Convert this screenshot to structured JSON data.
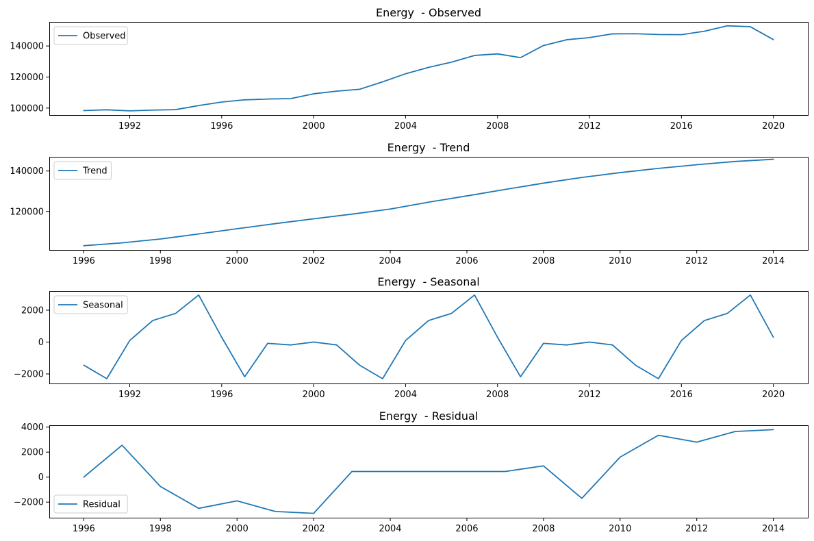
{
  "chart_data": [
    {
      "type": "line",
      "title": "Energy  - Observed",
      "xlabel": "",
      "ylabel": "",
      "xlim": [
        1988.5,
        2021.5
      ],
      "ylim": [
        95500,
        155500
      ],
      "xticks": [
        1992,
        1996,
        2000,
        2004,
        2008,
        2012,
        2016,
        2020
      ],
      "xtick_labels": [
        "1992",
        "1996",
        "2000",
        "2004",
        "2008",
        "2012",
        "2016",
        "2020"
      ],
      "yticks": [
        100000,
        120000,
        140000
      ],
      "ytick_labels": [
        "100000",
        "120000",
        "140000"
      ],
      "grid": false,
      "legend": "upper-left",
      "series": [
        {
          "name": "Observed",
          "color": "#1f77b4",
          "x": [
            1990,
            1991,
            1992,
            1993,
            1994,
            1995,
            1996,
            1997,
            1998,
            1999,
            2000,
            2001,
            2002,
            2003,
            2004,
            2005,
            2006,
            2007,
            2008,
            2009,
            2010,
            2011,
            2012,
            2013,
            2014,
            2015,
            2016,
            2017,
            2018,
            2019,
            2020
          ],
          "y": [
            98400,
            98900,
            98200,
            98700,
            99000,
            101600,
            103900,
            105300,
            105800,
            106100,
            109200,
            110900,
            112100,
            116900,
            122100,
            126200,
            129600,
            133900,
            134900,
            132500,
            140300,
            144000,
            145400,
            147800,
            147900,
            147400,
            147300,
            149500,
            153000,
            152400,
            144100
          ]
        }
      ]
    },
    {
      "type": "line",
      "title": "Energy  - Trend",
      "xlabel": "",
      "ylabel": "",
      "xlim": [
        1995.1,
        2014.9
      ],
      "ylim": [
        101000,
        147000
      ],
      "xticks": [
        1996,
        1998,
        2000,
        2002,
        2004,
        2006,
        2008,
        2010,
        2012,
        2014
      ],
      "xtick_labels": [
        "1996",
        "1998",
        "2000",
        "2002",
        "2004",
        "2006",
        "2008",
        "2010",
        "2012",
        "2014"
      ],
      "yticks": [
        120000,
        140000
      ],
      "ytick_labels": [
        "120000",
        "140000"
      ],
      "grid": false,
      "legend": "upper-left",
      "series": [
        {
          "name": "Trend",
          "color": "#1f77b4",
          "x": [
            1996,
            1997,
            1998,
            1999,
            2000,
            2001,
            2002,
            2003,
            2004,
            2005,
            2006,
            2007,
            2008,
            2009,
            2010,
            2011,
            2012,
            2013,
            2014
          ],
          "y": [
            103100,
            104500,
            106400,
            108900,
            111500,
            114000,
            116400,
            118700,
            121200,
            124600,
            127700,
            130900,
            134000,
            136800,
            139200,
            141300,
            143100,
            144700,
            145800
          ]
        }
      ]
    },
    {
      "type": "line",
      "title": "Energy  - Seasonal",
      "xlabel": "",
      "ylabel": "",
      "xlim": [
        1988.5,
        2021.5
      ],
      "ylim": [
        -2600,
        3200
      ],
      "xticks": [
        1992,
        1996,
        2000,
        2004,
        2008,
        2012,
        2016,
        2020
      ],
      "xtick_labels": [
        "1992",
        "1996",
        "2000",
        "2004",
        "2008",
        "2012",
        "2016",
        "2020"
      ],
      "yticks": [
        -2000,
        0,
        2000
      ],
      "ytick_labels": [
        "−2000",
        "0",
        "2000"
      ],
      "grid": false,
      "legend": "upper-left",
      "series": [
        {
          "name": "Seasonal",
          "color": "#1f77b4",
          "x": [
            1990,
            1991,
            1992,
            1993,
            1994,
            1995,
            1996,
            1997,
            1998,
            1999,
            2000,
            2001,
            2002,
            2003,
            2004,
            2005,
            2006,
            2007,
            2008,
            2009,
            2010,
            2011,
            2012,
            2013,
            2014,
            2015,
            2016,
            2017,
            2018,
            2019,
            2020
          ],
          "y": [
            -1450,
            -2300,
            100,
            1350,
            1800,
            2950,
            300,
            -2180,
            -80,
            -180,
            0,
            -180,
            -1450,
            -2300,
            100,
            1350,
            1800,
            2950,
            300,
            -2180,
            -80,
            -180,
            0,
            -180,
            -1450,
            -2300,
            100,
            1350,
            1800,
            2950,
            300
          ]
        }
      ]
    },
    {
      "type": "line",
      "title": "Energy  - Residual",
      "xlabel": "",
      "ylabel": "",
      "xlim": [
        1995.1,
        2014.9
      ],
      "ylim": [
        -3250,
        4150
      ],
      "xticks": [
        1996,
        1998,
        2000,
        2002,
        2004,
        2006,
        2008,
        2010,
        2012,
        2014
      ],
      "xtick_labels": [
        "1996",
        "1998",
        "2000",
        "2002",
        "2004",
        "2006",
        "2008",
        "2010",
        "2012",
        "2014"
      ],
      "yticks": [
        -2000,
        0,
        2000,
        4000
      ],
      "ytick_labels": [
        "−2000",
        "0",
        "2000",
        "4000"
      ],
      "grid": false,
      "legend": "lower-left",
      "series": [
        {
          "name": "Residual",
          "color": "#1f77b4",
          "x": [
            1996,
            1997,
            1998,
            1999,
            2000,
            2001,
            2002,
            2003,
            2004,
            2005,
            2006,
            2007,
            2008,
            2009,
            2010,
            2011,
            2012,
            2013,
            2014
          ],
          "y": [
            0,
            2550,
            -750,
            -2500,
            -1900,
            -2750,
            -2900,
            450,
            450,
            450,
            450,
            450,
            900,
            -1700,
            1600,
            3350,
            2800,
            3650,
            3800
          ]
        }
      ]
    }
  ]
}
